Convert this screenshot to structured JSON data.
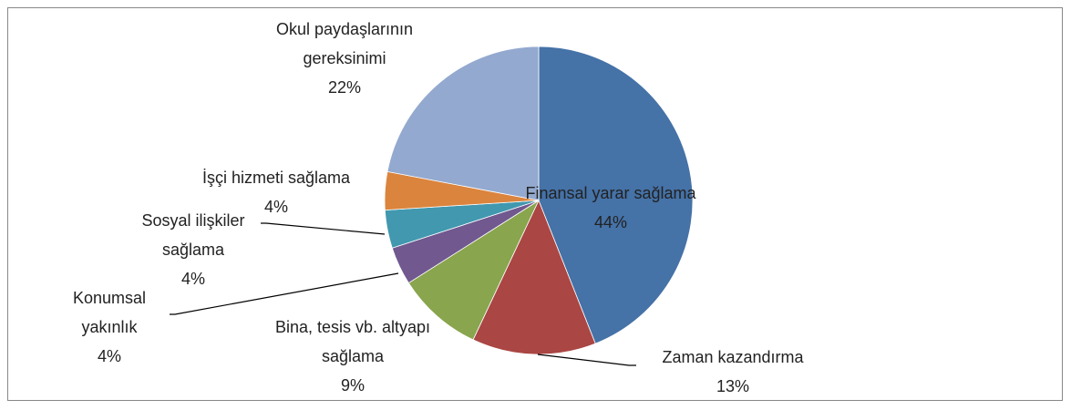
{
  "chart_data": {
    "type": "pie",
    "categories": [
      "Finansal yarar sağlama",
      "Zaman kazandırma",
      "Bina, tesis vb. altyapı sağlama",
      "Konumsal yakınlık",
      "Sosyal ilişkiler sağlama",
      "İşçi hizmeti sağlama",
      "Okul paydaşlarının gereksinimi"
    ],
    "values": [
      44,
      13,
      9,
      4,
      4,
      4,
      22
    ],
    "value_labels": [
      "44%",
      "13%",
      "9%",
      "4%",
      "4%",
      "4%",
      "22%"
    ],
    "colors": [
      "#4572a7",
      "#aa4643",
      "#89a54e",
      "#71588f",
      "#4198af",
      "#db843d",
      "#93a9cf"
    ]
  }
}
